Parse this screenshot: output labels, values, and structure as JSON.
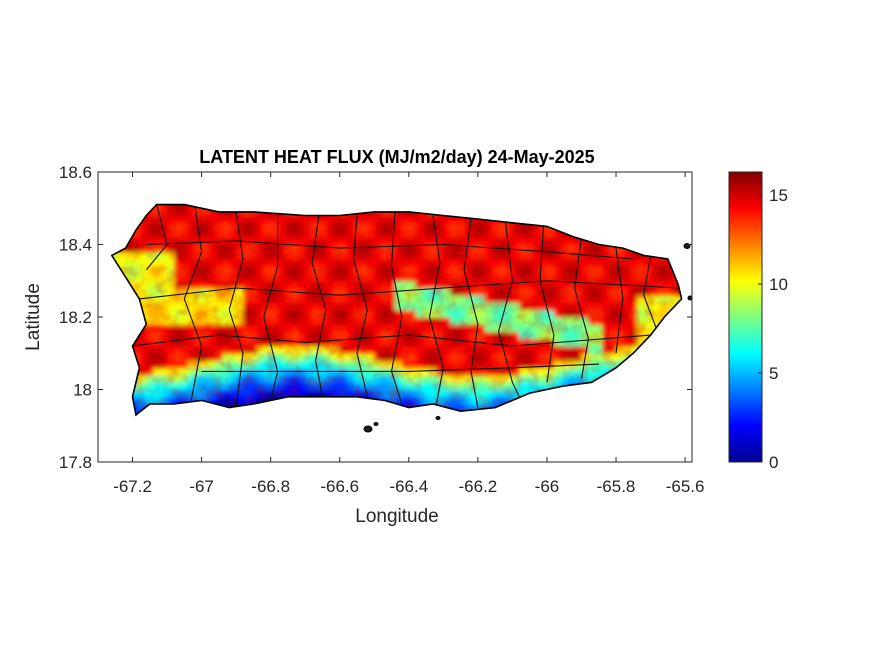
{
  "chart_data": {
    "type": "heatmap",
    "title": "LATENT HEAT FLUX (MJ/m2/day) 24-May-2025",
    "xlabel": "Longitude",
    "ylabel": "Latitude",
    "xlim": [
      -67.3,
      -65.58
    ],
    "ylim": [
      17.8,
      18.6
    ],
    "xticks": [
      -67.2,
      -67,
      -66.8,
      -66.6,
      -66.4,
      -66.2,
      -66,
      -65.8,
      -65.6
    ],
    "xtick_labels": [
      "-67.2",
      "-67",
      "-66.8",
      "-66.6",
      "-66.4",
      "-66.2",
      "-66",
      "-65.8",
      "-65.6"
    ],
    "yticks": [
      17.8,
      18,
      18.2,
      18.4,
      18.6
    ],
    "ytick_labels": [
      "17.8",
      "18",
      "18.2",
      "18.4",
      "18.6"
    ],
    "colorbar": {
      "colormap": "jet",
      "clim": [
        0,
        16.3
      ],
      "ticks": [
        0,
        5,
        10,
        15
      ],
      "tick_labels": [
        "0",
        "5",
        "10",
        "15"
      ]
    },
    "grid": false,
    "field_summary": [
      {
        "region": "north coast and central interior",
        "value_range": [
          13,
          16
        ]
      },
      {
        "region": "western interior band near 18.2N",
        "value_range": [
          9,
          12
        ]
      },
      {
        "region": "central-east band near 18.25N",
        "value_range": [
          7,
          11
        ]
      },
      {
        "region": "south coast lowlands",
        "value_range": [
          0,
          5
        ]
      },
      {
        "region": "eastern interior",
        "value_range": [
          12,
          16
        ]
      }
    ]
  }
}
